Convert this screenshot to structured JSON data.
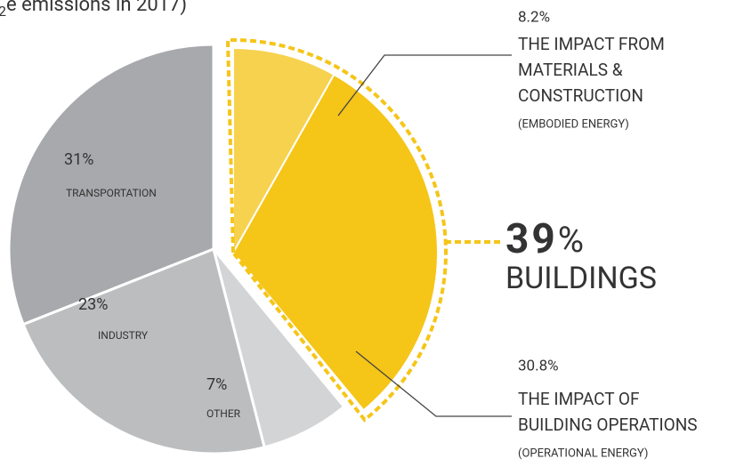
{
  "chart_data": {
    "type": "pie",
    "title_subscript": "2",
    "title": "e emissions in 2017)",
    "categories": [
      "TRANSPORTATION",
      "INDUSTRY",
      "OTHER"
    ],
    "values": [
      31,
      23,
      7
    ],
    "value_labels": [
      "31%",
      "23%",
      "7%"
    ],
    "colors": [
      "#a7a9ac",
      "#bcbdbf",
      "#d3d4d6"
    ],
    "buildings": {
      "label": "BUILDINGS",
      "value": 39,
      "unit": "%",
      "parts": [
        {
          "value": 8.2,
          "value_label": "8.2%",
          "lines": [
            "THE IMPACT FROM",
            "MATERIALS &",
            "CONSTRUCTION"
          ],
          "note": "(EMBODIED ENERGY)",
          "color": "#f6d24f"
        },
        {
          "value": 30.8,
          "value_label": "30.8%",
          "lines": [
            "THE IMPACT OF",
            "BUILDING OPERATIONS"
          ],
          "note": "(OPERATIONAL ENERGY)",
          "color": "#f5c518"
        }
      ]
    }
  }
}
